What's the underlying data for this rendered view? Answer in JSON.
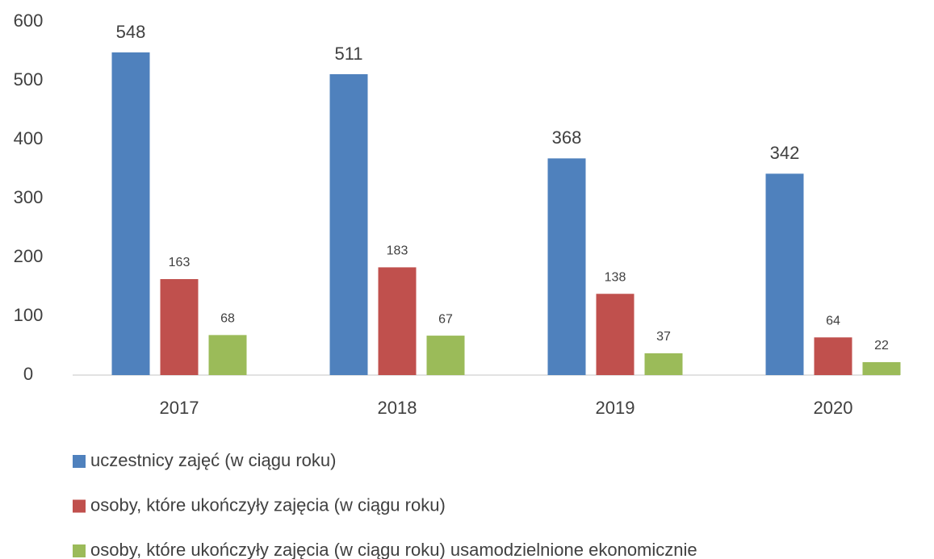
{
  "chart_data": {
    "type": "bar",
    "categories": [
      "2017",
      "2018",
      "2019",
      "2020"
    ],
    "series": [
      {
        "name": "uczestnicy zajęć (w ciągu roku)",
        "color": "#4f81bd",
        "values": [
          548,
          511,
          368,
          342
        ]
      },
      {
        "name": "osoby, które ukończyły zajęcia (w ciągu roku)",
        "color": "#c0504d",
        "values": [
          163,
          183,
          138,
          64
        ]
      },
      {
        "name": "osoby, które ukończyły zajęcia (w ciągu roku) usamodzielnione ekonomicznie",
        "color": "#9bbb59",
        "values": [
          68,
          67,
          37,
          22
        ]
      }
    ],
    "ylim": [
      0,
      600
    ],
    "yticks": [
      0,
      100,
      200,
      300,
      400,
      500,
      600
    ],
    "grid": false,
    "legend": "bottom"
  }
}
